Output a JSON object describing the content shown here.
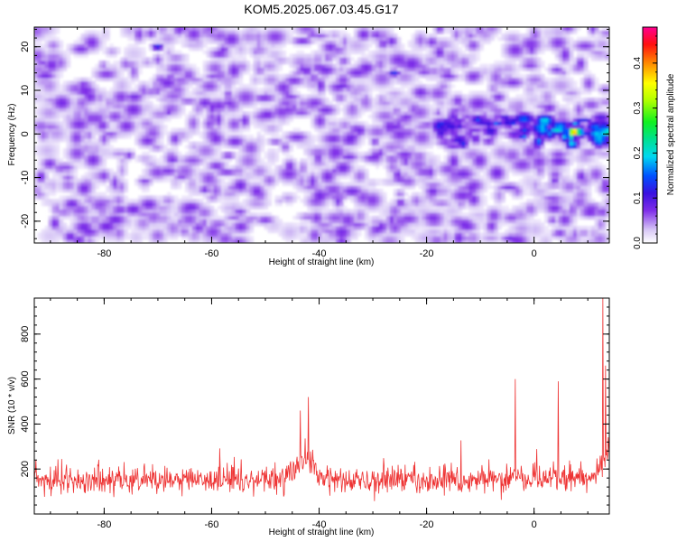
{
  "title": "KOM5.2025.067.03.45.G17",
  "colorbar": {
    "label": "Normalized spectral amplitude",
    "min": 0.0,
    "max": 0.48,
    "ticks": [
      "0.0",
      "0.1",
      "0.2",
      "0.3",
      "0.4"
    ],
    "tick_values": [
      0.0,
      0.1,
      0.2,
      0.3,
      0.4
    ],
    "colormap": "rainbow (white -> violet -> blue -> cyan -> green -> yellow -> red -> magenta)"
  },
  "chart_data": [
    {
      "type": "heatmap",
      "xlabel": "Height of straight line (km)",
      "ylabel": "Frequency (Hz)",
      "xlim": [
        -93,
        14
      ],
      "ylim": [
        -25,
        24.5
      ],
      "xticks": [
        "-80",
        "-60",
        "-40",
        "-20",
        "0"
      ],
      "xtick_values": [
        -80,
        -60,
        -40,
        -20,
        0
      ],
      "yticks": [
        "-20",
        "-10",
        "0",
        "10",
        "20"
      ],
      "ytick_values": [
        -20,
        -10,
        0,
        10,
        20
      ],
      "background_amplitude": [
        0.0,
        0.08
      ],
      "features": [
        {
          "kind": "ridge",
          "x_range": [
            -18,
            14
          ],
          "frequency": 1,
          "amplitude": 0.2
        },
        {
          "kind": "peak",
          "x": 7.5,
          "frequency": 0.5,
          "amplitude": 0.45
        },
        {
          "kind": "spot",
          "x": -70,
          "frequency": 20,
          "amplitude": 0.14
        },
        {
          "kind": "spot",
          "x": -26,
          "frequency": 14,
          "amplitude": 0.14
        }
      ]
    },
    {
      "type": "line",
      "xlabel": "Height of straight line (km)",
      "ylabel": "SNR (10 * v/v)",
      "xlim": [
        -93,
        14
      ],
      "ylim": [
        0,
        960
      ],
      "xticks": [
        "-80",
        "-60",
        "-40",
        "-20",
        "0"
      ],
      "xtick_values": [
        -80,
        -60,
        -40,
        -20,
        0
      ],
      "yticks": [
        "200",
        "400",
        "600",
        "800"
      ],
      "ytick_values": [
        200,
        400,
        600,
        800
      ],
      "series": [
        {
          "color": "#ee3333",
          "baseline_mean": 150,
          "sample_spacing_km": 0.1,
          "notable_points": [
            {
              "x": -42,
              "y": 520
            },
            {
              "x": -43.5,
              "y": 460
            },
            {
              "x": -3.5,
              "y": 600
            },
            {
              "x": 4.5,
              "y": 590
            },
            {
              "x": 12.8,
              "y": 960
            },
            {
              "x": 13.3,
              "y": 660
            }
          ]
        }
      ]
    }
  ]
}
